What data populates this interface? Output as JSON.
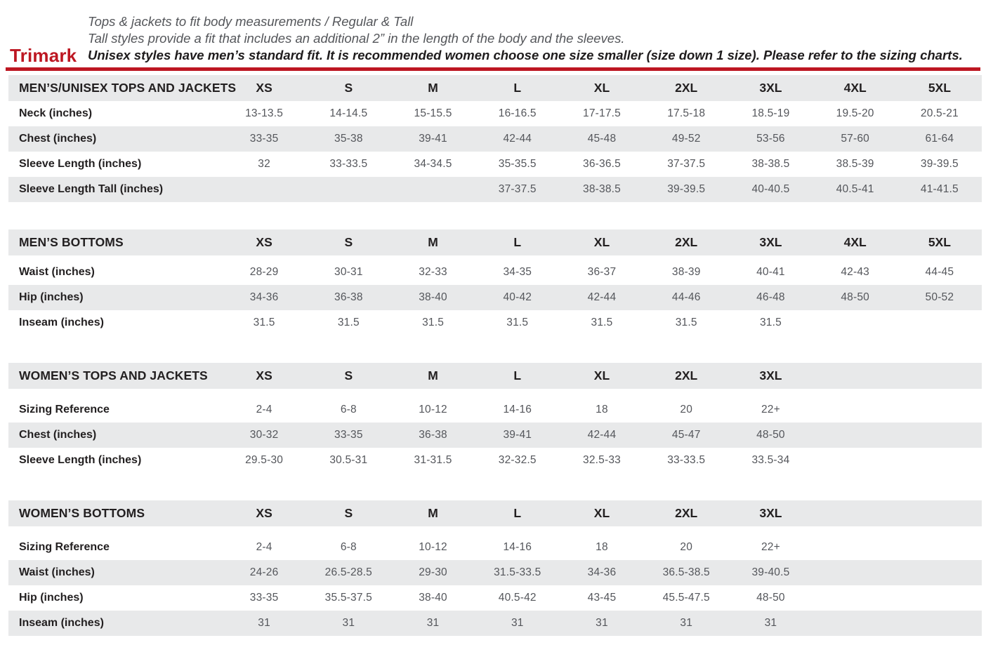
{
  "brand": {
    "name": "Trimark",
    "color": "#bd1722"
  },
  "header_notes": {
    "line1": "Tops & jackets to fit body measurements / Regular & Tall",
    "line2": "Tall styles provide a fit that includes an additional 2” in the length of the body and the sleeves.",
    "line3": "Unisex styles have men’s standard fit. It is recommended women choose one size smaller (size down 1 size).  Please refer to the sizing charts."
  },
  "colors": {
    "accent_red": "#bd1722",
    "row_stripe": "#e8e9ea",
    "label_text": "#232021",
    "value_text": "#54565b"
  },
  "tables": [
    {
      "id": "mens-unisex-tops-and-jackets",
      "title": "MEN’S/UNISEX TOPS AND JACKETS",
      "sizes": [
        "XS",
        "S",
        "M",
        "L",
        "XL",
        "2XL",
        "3XL",
        "4XL",
        "5XL"
      ],
      "rows": [
        {
          "label": "Neck (inches)",
          "values": [
            "13-13.5",
            "14-14.5",
            "15-15.5",
            "16-16.5",
            "17-17.5",
            "17.5-18",
            "18.5-19",
            "19.5-20",
            "20.5-21"
          ]
        },
        {
          "label": "Chest (inches)",
          "values": [
            "33-35",
            "35-38",
            "39-41",
            "42-44",
            "45-48",
            "49-52",
            "53-56",
            "57-60",
            "61-64"
          ]
        },
        {
          "label": "Sleeve Length (inches)",
          "values": [
            "32",
            "33-33.5",
            "34-34.5",
            "35-35.5",
            "36-36.5",
            "37-37.5",
            "38-38.5",
            "38.5-39",
            "39-39.5"
          ]
        },
        {
          "label": "Sleeve Length Tall (inches)",
          "values": [
            "",
            "",
            "",
            "37-37.5",
            "38-38.5",
            "39-39.5",
            "40-40.5",
            "40.5-41",
            "41-41.5"
          ]
        }
      ]
    },
    {
      "id": "mens-bottoms",
      "title": "MEN’S BOTTOMS",
      "sizes": [
        "XS",
        "S",
        "M",
        "L",
        "XL",
        "2XL",
        "3XL",
        "4XL",
        "5XL"
      ],
      "rows": [
        {
          "label": "Waist (inches)",
          "values": [
            "28-29",
            "30-31",
            "32-33",
            "34-35",
            "36-37",
            "38-39",
            "40-41",
            "42-43",
            "44-45"
          ]
        },
        {
          "label": "Hip (inches)",
          "values": [
            "34-36",
            "36-38",
            "38-40",
            "40-42",
            "42-44",
            "44-46",
            "46-48",
            "48-50",
            "50-52"
          ]
        },
        {
          "label": "Inseam (inches)",
          "values": [
            "31.5",
            "31.5",
            "31.5",
            "31.5",
            "31.5",
            "31.5",
            "31.5",
            "",
            ""
          ]
        }
      ]
    },
    {
      "id": "womens-tops-and-jackets",
      "title": "WOMEN’S TOPS AND JACKETS",
      "sizes": [
        "XS",
        "S",
        "M",
        "L",
        "XL",
        "2XL",
        "3XL"
      ],
      "rows": [
        {
          "label": "Sizing Reference",
          "values": [
            "2-4",
            "6-8",
            "10-12",
            "14-16",
            "18",
            "20",
            "22+"
          ]
        },
        {
          "label": "Chest (inches)",
          "values": [
            "30-32",
            "33-35",
            "36-38",
            "39-41",
            "42-44",
            "45-47",
            "48-50"
          ]
        },
        {
          "label": "Sleeve Length (inches)",
          "values": [
            "29.5-30",
            "30.5-31",
            "31-31.5",
            "32-32.5",
            "32.5-33",
            "33-33.5",
            "33.5-34"
          ]
        }
      ]
    },
    {
      "id": "womens-bottoms",
      "title": "WOMEN’S BOTTOMS",
      "sizes": [
        "XS",
        "S",
        "M",
        "L",
        "XL",
        "2XL",
        "3XL"
      ],
      "rows": [
        {
          "label": "Sizing Reference",
          "values": [
            "2-4",
            "6-8",
            "10-12",
            "14-16",
            "18",
            "20",
            "22+"
          ]
        },
        {
          "label": "Waist (inches)",
          "values": [
            "24-26",
            "26.5-28.5",
            "29-30",
            "31.5-33.5",
            "34-36",
            "36.5-38.5",
            "39-40.5"
          ]
        },
        {
          "label": "Hip (inches)",
          "values": [
            "33-35",
            "35.5-37.5",
            "38-40",
            "40.5-42",
            "43-45",
            "45.5-47.5",
            "48-50"
          ]
        },
        {
          "label": "Inseam (inches)",
          "values": [
            "31",
            "31",
            "31",
            "31",
            "31",
            "31",
            "31"
          ]
        }
      ]
    }
  ]
}
